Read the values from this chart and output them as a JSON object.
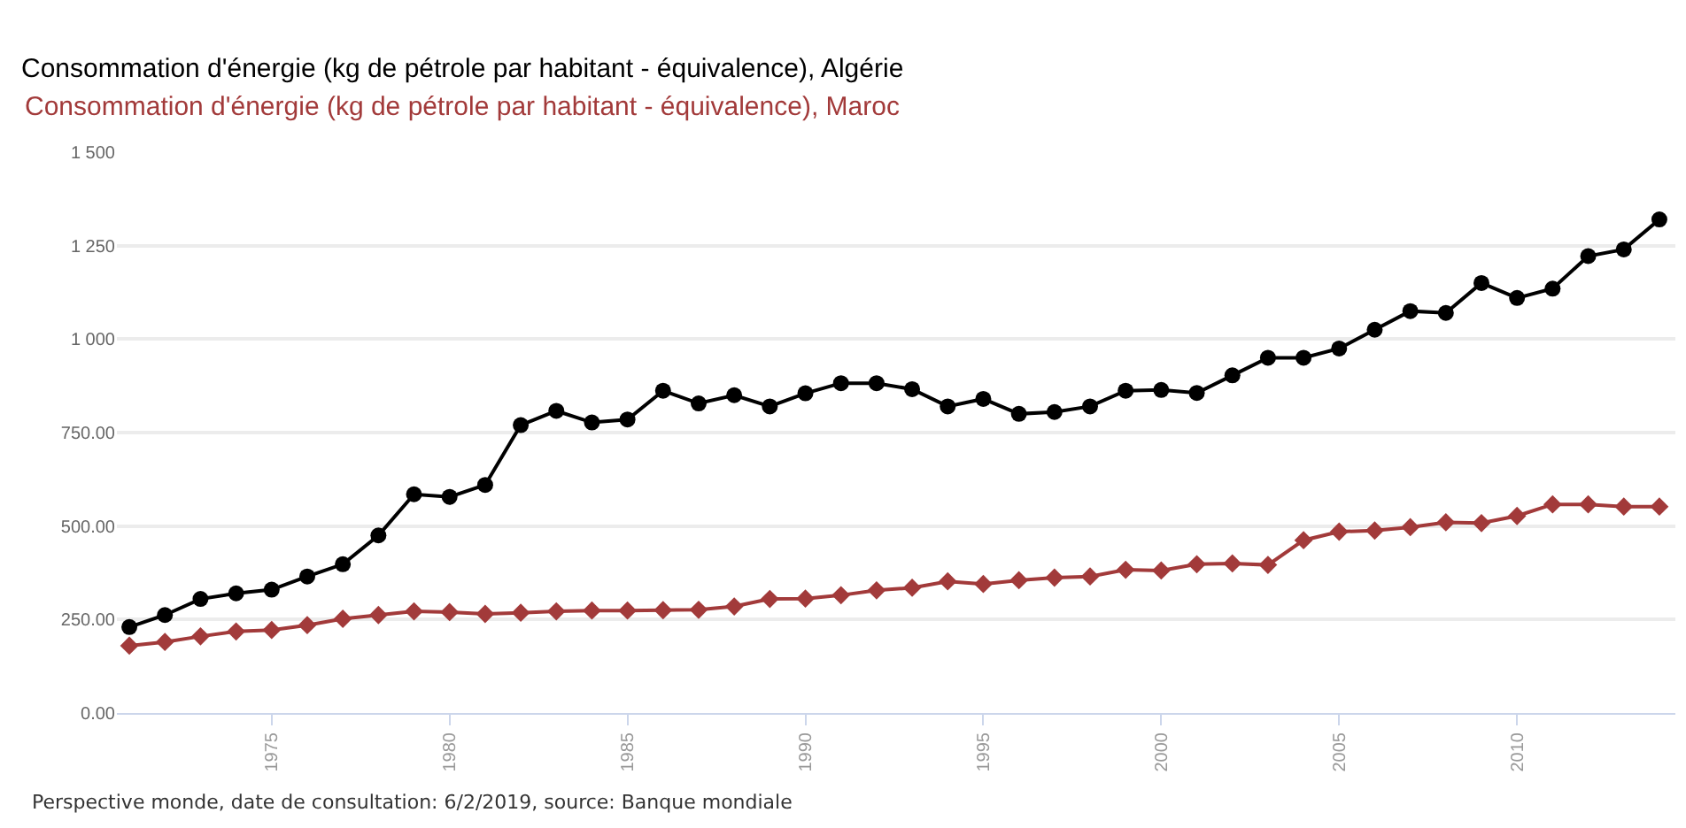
{
  "chart_data": {
    "type": "line",
    "title": "Consommation d'énergie (kg de pétrole par habitant - équivalence), Algérie",
    "subtitle": "Consommation d'énergie (kg de pétrole par habitant - équivalence), Maroc",
    "x": [
      1971,
      1972,
      1973,
      1974,
      1975,
      1976,
      1977,
      1978,
      1979,
      1980,
      1981,
      1982,
      1983,
      1984,
      1985,
      1986,
      1987,
      1988,
      1989,
      1990,
      1991,
      1992,
      1993,
      1994,
      1995,
      1996,
      1997,
      1998,
      1999,
      2000,
      2001,
      2002,
      2003,
      2004,
      2005,
      2006,
      2007,
      2008,
      2009,
      2010,
      2011,
      2012,
      2013,
      2014
    ],
    "series": [
      {
        "color": "#000000",
        "marker": "circle",
        "values": [
          230,
          262,
          305,
          320,
          330,
          365,
          398,
          475,
          585,
          578,
          610,
          770,
          808,
          777,
          785,
          862,
          828,
          850,
          820,
          855,
          882,
          882,
          866,
          820,
          840,
          800,
          805,
          820,
          862,
          864,
          856,
          903,
          950,
          950,
          975,
          1025,
          1075,
          1070,
          1150,
          1110,
          1135,
          1222,
          1240,
          1320
        ]
      },
      {
        "color": "#a23a3a",
        "marker": "diamond",
        "values": [
          180,
          190,
          205,
          218,
          222,
          235,
          252,
          262,
          272,
          270,
          265,
          268,
          272,
          274,
          274,
          275,
          276,
          285,
          305,
          306,
          315,
          328,
          335,
          352,
          345,
          355,
          362,
          365,
          383,
          381,
          398,
          400,
          396,
          462,
          485,
          488,
          497,
          510,
          508,
          527,
          558,
          558,
          552,
          552
        ]
      }
    ],
    "xlim": [
      1970.65,
      2014.45
    ],
    "xticks": [
      1975,
      1980,
      1985,
      1990,
      1995,
      2000,
      2005,
      2010
    ],
    "ylim": [
      0,
      1500
    ],
    "yticks": [
      {
        "value": 0,
        "label": "0.00"
      },
      {
        "value": 250,
        "label": "250.00"
      },
      {
        "value": 500,
        "label": "500.00"
      },
      {
        "value": 750,
        "label": "750.00"
      },
      {
        "value": 1000,
        "label": "1 000"
      },
      {
        "value": 1250,
        "label": "1 250"
      },
      {
        "value": 1500,
        "label": "1 500"
      }
    ],
    "grid": "y",
    "line_style": "solid",
    "annotations": [
      "Perspective monde, date de consultation: 6/2/2019, source: Banque mondiale"
    ]
  }
}
